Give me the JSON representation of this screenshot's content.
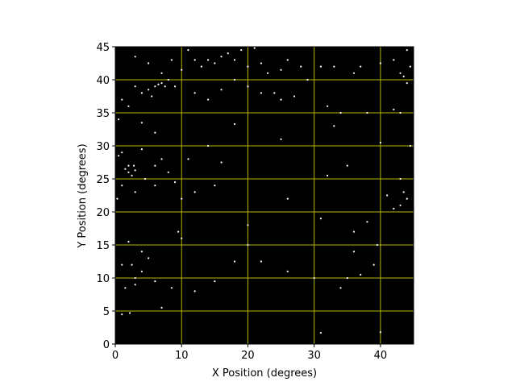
{
  "chart_data": {
    "type": "scatter",
    "xlabel": "X Position (degrees)",
    "ylabel": "Y Position (degrees)",
    "xlim": [
      0,
      45
    ],
    "ylim": [
      0,
      45
    ],
    "xticks": [
      0,
      10,
      20,
      30,
      40
    ],
    "yticks": [
      0,
      5,
      10,
      15,
      20,
      25,
      30,
      35,
      40,
      45
    ],
    "grid": true,
    "grid_color": "#b8b800",
    "background": "#000000",
    "color": "#ffffff",
    "x": [
      3,
      5,
      7,
      8.5,
      10,
      11,
      12,
      13,
      14,
      15,
      16,
      17,
      18,
      19,
      20,
      21,
      22,
      23,
      25,
      26,
      28,
      29,
      31,
      33,
      36,
      37,
      40,
      42,
      43,
      44,
      44.5,
      43.5,
      44,
      6,
      6.5,
      7,
      7.5,
      5,
      4,
      8,
      9,
      5.5,
      3,
      12,
      14,
      16,
      18,
      20,
      22,
      24,
      25,
      27,
      32,
      34,
      38,
      42,
      43,
      1,
      2,
      0.5,
      4,
      6,
      18,
      25,
      33,
      40,
      44.5,
      14,
      11,
      16,
      1.5,
      2,
      2.5,
      3,
      2,
      2.8,
      1,
      4,
      0.5,
      4.5,
      6,
      7,
      8,
      9,
      6,
      3,
      1,
      0.3,
      43,
      43.5,
      44,
      43,
      42,
      41,
      32,
      35,
      26,
      15,
      12,
      10,
      20,
      20,
      10,
      9.5,
      2,
      4,
      5,
      1,
      2.5,
      4,
      3,
      3,
      1.5,
      6,
      8.5,
      12,
      15,
      18,
      22,
      26,
      30,
      35,
      34,
      37,
      39,
      39.5,
      38,
      36,
      31,
      1,
      2.2,
      7,
      31,
      40,
      36
    ],
    "y": [
      43.5,
      42.5,
      41,
      43,
      41.5,
      44.5,
      43,
      42,
      43,
      42.5,
      43.5,
      44,
      43,
      44.5,
      42,
      44.8,
      42.5,
      41,
      41.5,
      43,
      42,
      40,
      42,
      42,
      41,
      42,
      42.5,
      43,
      41,
      44.5,
      42,
      40.5,
      39.5,
      39,
      39.3,
      39.5,
      39,
      38.5,
      38,
      40,
      39,
      37.5,
      39,
      38,
      37,
      38.5,
      40,
      39,
      38,
      38,
      37,
      37.5,
      36,
      35,
      35,
      35.5,
      35,
      37,
      36,
      34,
      33.5,
      32,
      33.3,
      31,
      33,
      30.5,
      30,
      30,
      28,
      27.5,
      26.5,
      26,
      25.5,
      26.3,
      27,
      27,
      29,
      29.5,
      28.5,
      25,
      27,
      28,
      26,
      24.5,
      24,
      23,
      24,
      22,
      25,
      23,
      22,
      21,
      20.5,
      22.5,
      25.5,
      27,
      22,
      24,
      23,
      22,
      18,
      15,
      16,
      17,
      15.5,
      14,
      13,
      12,
      12,
      11,
      10,
      9,
      8.5,
      9.5,
      8.5,
      8,
      9.5,
      12.5,
      12.5,
      11,
      10,
      10,
      8.5,
      10.5,
      12,
      15,
      18.5,
      17,
      19,
      4.5,
      4.7,
      5.5,
      1.7,
      1.8,
      14
    ]
  }
}
